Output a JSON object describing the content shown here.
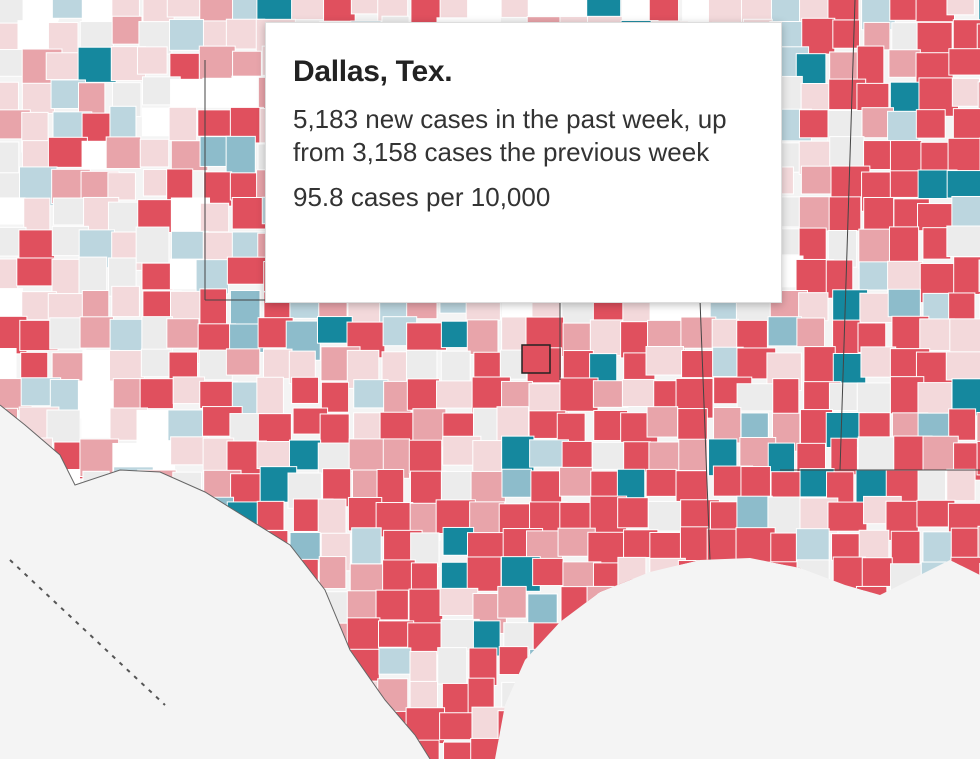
{
  "tooltip": {
    "title": "Dallas, Tex.",
    "description": "5,183 new cases in the past week, up from 3,158 cases the previous week",
    "rate": "95.8 cases per 10,000"
  },
  "legend_colors": {
    "high": "#e0505e",
    "very_high": "#15889e",
    "moderate": "#e8a4aa",
    "low": "#f3d9db",
    "minimal": "#ececec",
    "declining": "#bcd6df",
    "declining_more": "#8dbccb",
    "none": "#ffffff"
  },
  "highlighted_county": "Dallas, Tex."
}
